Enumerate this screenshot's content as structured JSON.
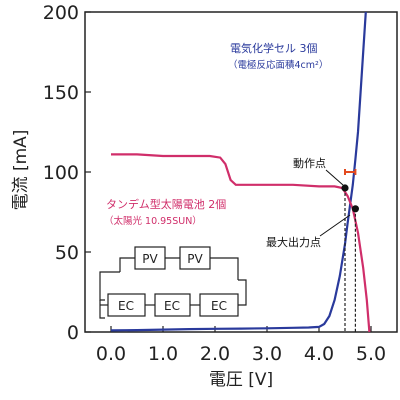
{
  "chart_data": {
    "type": "line",
    "xlabel": "電圧 [V]",
    "ylabel": "電流 [mA]",
    "xlim": [
      -0.5,
      5.5
    ],
    "ylim": [
      0,
      200
    ],
    "x_ticks": [
      0.0,
      1.0,
      2.0,
      3.0,
      4.0,
      5.0
    ],
    "x_tick_labels": [
      "0.0",
      "1.0",
      "2.0",
      "3.0",
      "4.0",
      "5.0"
    ],
    "y_ticks": [
      0,
      50,
      100,
      150,
      200
    ],
    "y_tick_labels": [
      "0",
      "50",
      "100",
      "150",
      "200"
    ],
    "grid": false,
    "series": [
      {
        "name": "電気化学セル 3個",
        "note": "（電極反応面積4cm²）",
        "color": "#2a3a9c",
        "points": [
          [
            0.0,
            1.0
          ],
          [
            0.5,
            1.2
          ],
          [
            1.0,
            1.5
          ],
          [
            1.5,
            1.8
          ],
          [
            2.0,
            2.0
          ],
          [
            2.5,
            2.1
          ],
          [
            3.0,
            2.3
          ],
          [
            3.5,
            2.6
          ],
          [
            3.8,
            2.8
          ],
          [
            4.0,
            3.2
          ],
          [
            4.1,
            5
          ],
          [
            4.2,
            10
          ],
          [
            4.3,
            20
          ],
          [
            4.4,
            35
          ],
          [
            4.5,
            55
          ],
          [
            4.55,
            68
          ],
          [
            4.6,
            80
          ],
          [
            4.65,
            92
          ],
          [
            4.7,
            108
          ],
          [
            4.75,
            125
          ],
          [
            4.8,
            150
          ],
          [
            4.85,
            175
          ],
          [
            4.9,
            200
          ]
        ]
      },
      {
        "name": "タンデム型太陽電池 2個",
        "note": "（太陽光 10.95SUN）",
        "color": "#d02e6a",
        "points": [
          [
            0.0,
            111
          ],
          [
            0.5,
            111
          ],
          [
            1.0,
            110
          ],
          [
            1.5,
            110
          ],
          [
            1.9,
            110
          ],
          [
            2.1,
            109
          ],
          [
            2.2,
            105
          ],
          [
            2.3,
            95
          ],
          [
            2.4,
            92
          ],
          [
            2.6,
            92
          ],
          [
            3.0,
            92
          ],
          [
            3.5,
            92
          ],
          [
            4.0,
            91
          ],
          [
            4.3,
            91
          ],
          [
            4.45,
            90
          ],
          [
            4.55,
            85
          ],
          [
            4.65,
            77
          ],
          [
            4.75,
            62
          ],
          [
            4.85,
            40
          ],
          [
            4.92,
            20
          ],
          [
            4.97,
            0
          ]
        ]
      }
    ],
    "annotations": {
      "operating_point_label": "動作点",
      "max_power_point_label": "最大出力点",
      "operating_point": [
        4.5,
        90
      ],
      "max_power_point": [
        4.7,
        77
      ]
    },
    "inset": {
      "top_row": [
        "PV",
        "PV"
      ],
      "bottom_row": [
        "EC",
        "EC",
        "EC"
      ]
    }
  }
}
